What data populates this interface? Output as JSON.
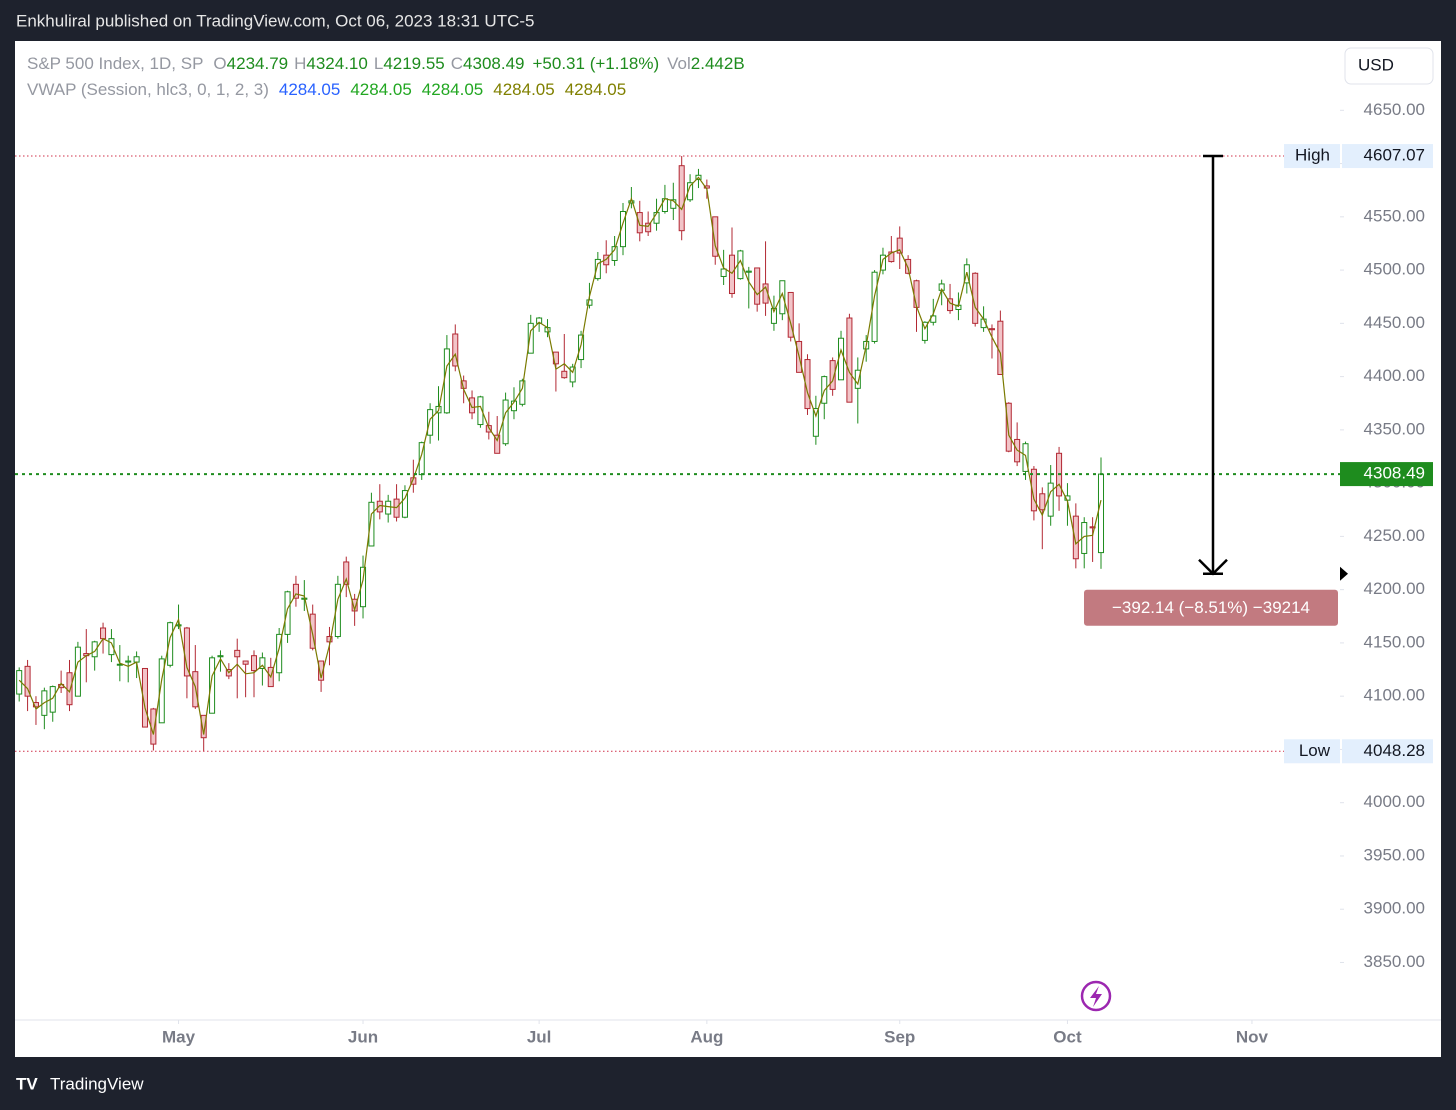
{
  "header": {
    "text": "Enkhuliral published on TradingView.com, Oct 06, 2023 18:31 UTC-5"
  },
  "footer": {
    "brand": "TradingView"
  },
  "currency": "USD",
  "chart_data": {
    "type": "candlestick",
    "title": "S&P 500 Index, 1D, SP",
    "ohlc_letters": [
      "O",
      "H",
      "L",
      "C"
    ],
    "last_labels": [
      "4234.79",
      "4324.10",
      "4219.55",
      "4308.49"
    ],
    "change": "+50.31 (+1.18%)",
    "volume_label": "Vol",
    "volume": "2.442B",
    "colors": {
      "up": "#1e8c1e",
      "down": "#b22833",
      "down_fill": "#f2c4c8",
      "current": "#1e8c1e",
      "level": "#d0304a"
    },
    "candles": [
      [
        4102,
        4127,
        4095,
        4124
      ],
      [
        4128,
        4134,
        4086,
        4100
      ],
      [
        4094,
        4100,
        4073,
        4090
      ],
      [
        4082,
        4108,
        4069,
        4105
      ],
      [
        4085,
        4110,
        4076,
        4109
      ],
      [
        4111,
        4124,
        4103,
        4108
      ],
      [
        4122,
        4134,
        4086,
        4092
      ],
      [
        4100,
        4151,
        4100,
        4146
      ],
      [
        4140,
        4163,
        4113,
        4138
      ],
      [
        4137,
        4152,
        4124,
        4151
      ],
      [
        4164,
        4169,
        4140,
        4154
      ],
      [
        4139,
        4163,
        4132,
        4154
      ],
      [
        4130,
        4148,
        4114,
        4130
      ],
      [
        4132,
        4138,
        4113,
        4133
      ],
      [
        4132,
        4142,
        4117,
        4137
      ],
      [
        4126,
        4126,
        4071,
        4071
      ],
      [
        4088,
        4089,
        4049,
        4055
      ],
      [
        4075,
        4138,
        4075,
        4135
      ],
      [
        4129,
        4170,
        4127,
        4169
      ],
      [
        4166,
        4186,
        4163,
        4167
      ],
      [
        4164,
        4165,
        4098,
        4119
      ],
      [
        4123,
        4148,
        4088,
        4090
      ],
      [
        4082,
        4082,
        4048.28,
        4061
      ],
      [
        4084,
        4138,
        4084,
        4136
      ],
      [
        4137,
        4143,
        4123,
        4138
      ],
      [
        4125,
        4131,
        4116,
        4119
      ],
      [
        4143,
        4154,
        4098,
        4137
      ],
      [
        4133,
        4133,
        4099,
        4130
      ],
      [
        4138,
        4143,
        4099,
        4124
      ],
      [
        4126,
        4141,
        4110,
        4136
      ],
      [
        4127,
        4136,
        4109,
        4109
      ],
      [
        4122,
        4164,
        4114,
        4158
      ],
      [
        4158,
        4199,
        4150,
        4198
      ],
      [
        4205,
        4213,
        4184,
        4192
      ],
      [
        4191,
        4209,
        4180,
        4192
      ],
      [
        4177,
        4186,
        4143,
        4145
      ],
      [
        4133,
        4133,
        4104,
        4115
      ],
      [
        4156,
        4165,
        4129,
        4151
      ],
      [
        4156,
        4213,
        4154,
        4205
      ],
      [
        4226,
        4231,
        4193,
        4205
      ],
      [
        4191,
        4196,
        4166,
        4180
      ],
      [
        4184,
        4232,
        4173,
        4221
      ],
      [
        4241,
        4291,
        4241,
        4282
      ],
      [
        4283,
        4299,
        4266,
        4273
      ],
      [
        4271,
        4289,
        4263,
        4283
      ],
      [
        4285,
        4299,
        4264,
        4268
      ],
      [
        4268,
        4298,
        4267,
        4293
      ],
      [
        4305,
        4322,
        4291,
        4299
      ],
      [
        4308,
        4339,
        4303,
        4338
      ],
      [
        4345,
        4375,
        4337,
        4369
      ],
      [
        4366,
        4391,
        4340,
        4372
      ],
      [
        4366,
        4439,
        4365,
        4426
      ],
      [
        4440,
        4449,
        4405,
        4410
      ],
      [
        4396,
        4401,
        4375,
        4389
      ],
      [
        4380,
        4387,
        4360,
        4366
      ],
      [
        4355,
        4382,
        4352,
        4381
      ],
      [
        4354,
        4367,
        4341,
        4348
      ],
      [
        4345,
        4363,
        4328,
        4328
      ],
      [
        4337,
        4385,
        4335,
        4378
      ],
      [
        4368,
        4390,
        4360,
        4377
      ],
      [
        4374,
        4398,
        4372,
        4396
      ],
      [
        4422,
        4458,
        4422,
        4450
      ],
      [
        4450,
        4456,
        4442,
        4455
      ],
      [
        4442,
        4454,
        4437,
        4446
      ],
      [
        4423,
        4423,
        4386,
        4412
      ],
      [
        4405,
        4440,
        4398,
        4399
      ],
      [
        4395,
        4412,
        4390,
        4409
      ],
      [
        4416,
        4443,
        4408,
        4439
      ],
      [
        4467,
        4488,
        4464,
        4472
      ],
      [
        4492,
        4517,
        4490,
        4510
      ],
      [
        4514,
        4528,
        4497,
        4505
      ],
      [
        4509,
        4532,
        4504,
        4522
      ],
      [
        4522,
        4563,
        4514,
        4555
      ],
      [
        4563,
        4578,
        4558,
        4565
      ],
      [
        4554,
        4565,
        4527,
        4535
      ],
      [
        4544,
        4555,
        4532,
        4536
      ],
      [
        4544,
        4567,
        4537,
        4554
      ],
      [
        4555,
        4580,
        4553,
        4567
      ],
      [
        4558,
        4582,
        4547,
        4566
      ],
      [
        4598,
        4607.07,
        4528,
        4537
      ],
      [
        4566,
        4590,
        4564,
        4582
      ],
      [
        4585,
        4595,
        4577,
        4589
      ],
      [
        4579,
        4585,
        4567,
        4577
      ],
      [
        4550,
        4550,
        4505,
        4513
      ],
      [
        4494,
        4519,
        4486,
        4501
      ],
      [
        4514,
        4540,
        4474,
        4478
      ],
      [
        4492,
        4519,
        4491,
        4518
      ],
      [
        4498,
        4503,
        4464,
        4499
      ],
      [
        4502,
        4502,
        4461,
        4468
      ],
      [
        4487,
        4527,
        4457,
        4469
      ],
      [
        4450,
        4476,
        4443,
        4464
      ],
      [
        4459,
        4490,
        4453,
        4490
      ],
      [
        4479,
        4479,
        4433,
        4437
      ],
      [
        4433,
        4450,
        4404,
        4404
      ],
      [
        4416,
        4421,
        4364,
        4370
      ],
      [
        4344,
        4382,
        4336,
        4370
      ],
      [
        4375,
        4401,
        4360,
        4400
      ],
      [
        4415,
        4418,
        4382,
        4388
      ],
      [
        4397,
        4443,
        4397,
        4436
      ],
      [
        4455,
        4459,
        4376,
        4376
      ],
      [
        4389,
        4418,
        4356,
        4406
      ],
      [
        4426,
        4439,
        4414,
        4433
      ],
      [
        4433,
        4500,
        4431,
        4498
      ],
      [
        4500,
        4521,
        4496,
        4514
      ],
      [
        4517,
        4532,
        4507,
        4508
      ],
      [
        4530,
        4541,
        4501,
        4516
      ],
      [
        4510,
        4514,
        4496,
        4497
      ],
      [
        4490,
        4491,
        4442,
        4465
      ],
      [
        4434,
        4452,
        4431,
        4451
      ],
      [
        4451,
        4473,
        4448,
        4457
      ],
      [
        4481,
        4491,
        4467,
        4487
      ],
      [
        4473,
        4487,
        4459,
        4462
      ],
      [
        4463,
        4479,
        4453,
        4467
      ],
      [
        4488,
        4511,
        4478,
        4505
      ],
      [
        4497,
        4498,
        4447,
        4450
      ],
      [
        4446,
        4466,
        4442,
        4454
      ],
      [
        4445,
        4449,
        4417,
        4444
      ],
      [
        4452,
        4462,
        4402,
        4402
      ],
      [
        4375,
        4376,
        4329,
        4330
      ],
      [
        4341,
        4357,
        4316,
        4320
      ],
      [
        4311,
        4339,
        4303,
        4337
      ],
      [
        4313,
        4316,
        4265,
        4274
      ],
      [
        4290,
        4296,
        4238,
        4275
      ],
      [
        4269,
        4317,
        4260,
        4300
      ],
      [
        4328,
        4334,
        4274,
        4288
      ],
      [
        4284,
        4300,
        4260,
        4288
      ],
      [
        4269,
        4281,
        4220,
        4229
      ],
      [
        4234,
        4268,
        4220,
        4263
      ],
      [
        4259,
        4268,
        4226,
        4258
      ],
      [
        4234.79,
        4324.1,
        4219.55,
        4308.49
      ]
    ],
    "series": [
      {
        "name": "VWAP (Session, hlc3, 0, 1, 2, 3)",
        "color": "#7a7a00",
        "values": [
          4115,
          4107,
          4088,
          4094,
          4098,
          4112,
          4104,
          4132,
          4138,
          4142,
          4154,
          4150,
          4131,
          4128,
          4132,
          4089,
          4064,
          4116,
          4155,
          4172,
          4127,
          4109,
          4064,
          4119,
          4135,
          4122,
          4130,
          4121,
          4122,
          4129,
          4118,
          4145,
          4182,
          4196,
          4194,
          4158,
          4117,
          4148,
          4191,
          4210,
          4181,
          4209,
          4271,
          4279,
          4278,
          4277,
          4286,
          4304,
          4327,
          4360,
          4368,
          4410,
          4421,
          4388,
          4371,
          4372,
          4352,
          4340,
          4366,
          4376,
          4389,
          4443,
          4451,
          4446,
          4407,
          4412,
          4404,
          4430,
          4475,
          4506,
          4510,
          4519,
          4544,
          4567,
          4542,
          4541,
          4553,
          4567,
          4565,
          4557,
          4579,
          4587,
          4576,
          4523,
          4502,
          4497,
          4509,
          4489,
          4477,
          4484,
          4461,
          4478,
          4450,
          4419,
          4385,
          4363,
          4387,
          4396,
          4425,
          4404,
          4393,
          4429,
          4476,
          4510,
          4516,
          4519,
          4502,
          4466,
          4445,
          4459,
          4482,
          4469,
          4466,
          4498,
          4465,
          4454,
          4437,
          4422,
          4345,
          4331,
          4326,
          4285,
          4270,
          4292,
          4299,
          4283,
          4243,
          4250,
          4251,
          4284.05
        ]
      }
    ],
    "vwap_legend_colors": [
      "#2962ff",
      "#22a722",
      "#22a722",
      "#808000",
      "#808000"
    ],
    "xlim": [
      -0.5,
      157.5
    ],
    "xticks": [
      {
        "value": 19,
        "label": "May"
      },
      {
        "value": 41,
        "label": "Jun"
      },
      {
        "value": 62,
        "label": "Jul"
      },
      {
        "value": 82,
        "label": "Aug"
      },
      {
        "value": 105,
        "label": "Sep"
      },
      {
        "value": 125,
        "label": "Oct"
      },
      {
        "value": 147,
        "label": "Nov"
      }
    ],
    "ylim": [
      3796,
      4716
    ],
    "yticks": [
      {
        "value": 3850,
        "label": "3850.00"
      },
      {
        "value": 3900,
        "label": "3900.00"
      },
      {
        "value": 3950,
        "label": "3950.00"
      },
      {
        "value": 4000,
        "label": "4000.00"
      },
      {
        "value": 4050,
        "label": "4050.00"
      },
      {
        "value": 4100,
        "label": "4100.00"
      },
      {
        "value": 4150,
        "label": "4150.00"
      },
      {
        "value": 4200,
        "label": "4200.00"
      },
      {
        "value": 4250,
        "label": "4250.00"
      },
      {
        "value": 4300,
        "label": "4300.00"
      },
      {
        "value": 4350,
        "label": "4350.00"
      },
      {
        "value": 4400,
        "label": "4400.00"
      },
      {
        "value": 4450,
        "label": "4450.00"
      },
      {
        "value": 4500,
        "label": "4500.00"
      },
      {
        "value": 4550,
        "label": "4550.00"
      },
      {
        "value": 4600,
        "label": "4600.00"
      },
      {
        "value": 4650,
        "label": "4650.00"
      }
    ],
    "levels": {
      "high_label": "High",
      "low_label": "Low"
    },
    "measure": {
      "to": 4214.93,
      "label": "−392.14 (−8.51%) −39214"
    }
  }
}
